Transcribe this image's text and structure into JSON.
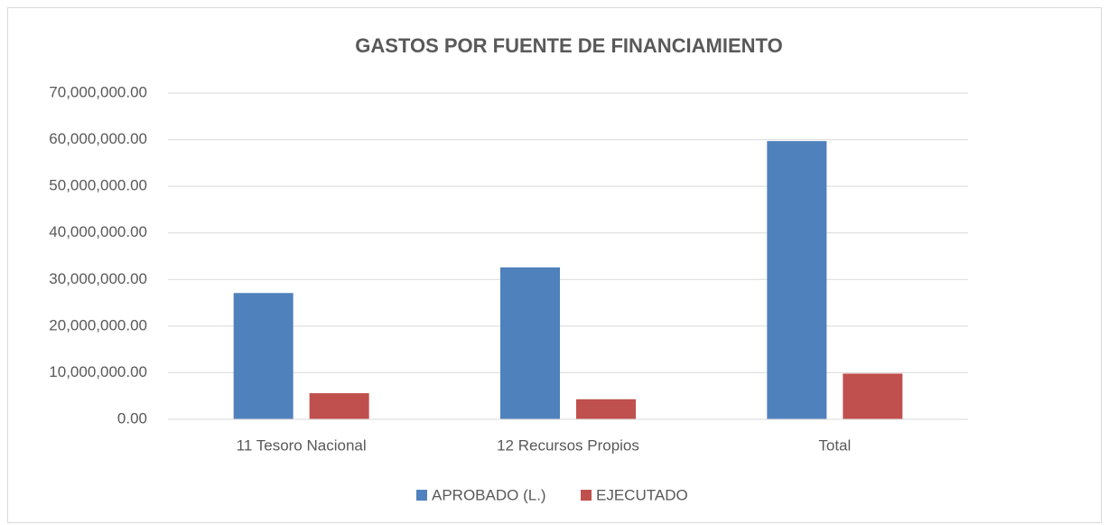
{
  "chart_data": {
    "type": "bar",
    "title": "GASTOS POR FUENTE DE FINANCIAMIENTO",
    "categories": [
      "11 Tesoro Nacional",
      "12 Recursos Propios",
      "Total"
    ],
    "series": [
      {
        "name": "APROBADO (L.)",
        "color": "#4f81bd",
        "values": [
          27100000,
          32600000,
          59700000
        ]
      },
      {
        "name": "EJECUTADO",
        "color": "#c0504d",
        "values": [
          5600000,
          4300000,
          9800000
        ]
      }
    ],
    "ylim": [
      0,
      70000000
    ],
    "yticks": [
      {
        "value": 0,
        "label": "0.00"
      },
      {
        "value": 10000000,
        "label": "10,000,000.00"
      },
      {
        "value": 20000000,
        "label": "20,000,000.00"
      },
      {
        "value": 30000000,
        "label": "30,000,000.00"
      },
      {
        "value": 40000000,
        "label": "40,000,000.00"
      },
      {
        "value": 50000000,
        "label": "50,000,000.00"
      },
      {
        "value": 60000000,
        "label": "60,000,000.00"
      },
      {
        "value": 70000000,
        "label": "70,000,000.00"
      }
    ],
    "grid": true,
    "legend": "bottom"
  }
}
